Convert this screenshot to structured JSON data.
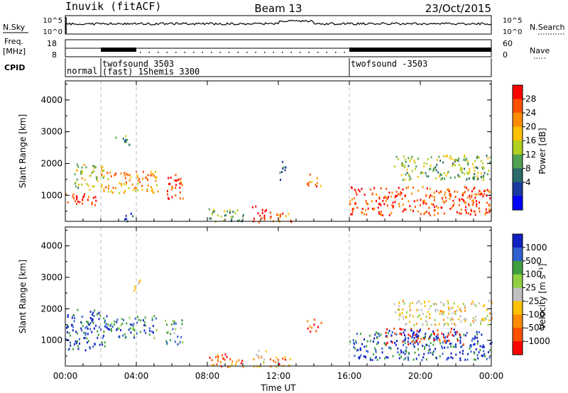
{
  "header": {
    "station": "Inuvik (fitACF)",
    "beam": "Beam 13",
    "date": "23/Oct/2015"
  },
  "strip_panels": {
    "nsky_label": "N.Sky",
    "nsky_ticks": [
      "10^5",
      "10^0"
    ],
    "nsearch_label": "N.Search",
    "nsearch_ticks": [
      "10^5",
      "10^0"
    ],
    "freq_label_line1": "Freq.",
    "freq_label_line2": "[MHz]",
    "freq_ticks": [
      "18",
      "8"
    ],
    "nave_label": "Nave",
    "nave_ticks": [
      "60",
      "0"
    ],
    "cpid_label": "CPID",
    "cpid_segments": [
      {
        "text": "normal",
        "start_hour": 0
      },
      {
        "text": "twofsound 3503",
        "start_hour": 2
      },
      {
        "text": "(fast) 1Shemis 3300",
        "start_hour": 2
      },
      {
        "text": "twofsound -3503",
        "start_hour": 16
      }
    ]
  },
  "chart_data": [
    {
      "type": "heatmap",
      "name": "Power",
      "ylabel": "Slant Range [km]",
      "xlabel": "Time UT",
      "xlim_hours": [
        0,
        24
      ],
      "ylim_km": [
        180,
        4600
      ],
      "yticks": [
        "1000",
        "2000",
        "3000",
        "4000"
      ],
      "xticks": [
        "00:00",
        "04:00",
        "08:00",
        "12:00",
        "16:00",
        "20:00",
        "00:00"
      ],
      "colorbar_label": "Power [dB]",
      "colorbar_ticks": [
        "28",
        "24",
        "20",
        "16",
        "12",
        "8",
        "4"
      ],
      "colorbar_colors": [
        "#ff0000",
        "#ff5000",
        "#ff8c00",
        "#ffc000",
        "#b0d020",
        "#50a050",
        "#2a6a6a",
        "#1a3aa0",
        "#0000ff"
      ],
      "blobs": [
        {
          "t0": 0.0,
          "t1": 1.8,
          "r0": 700,
          "r1": 1100,
          "level": 0.85
        },
        {
          "t0": 0.5,
          "t1": 2.2,
          "r0": 1200,
          "r1": 2000,
          "level": 0.5
        },
        {
          "t0": 2.0,
          "t1": 5.2,
          "r0": 1100,
          "r1": 1800,
          "level": 0.7
        },
        {
          "t0": 5.6,
          "t1": 6.6,
          "r0": 900,
          "r1": 1700,
          "level": 0.9
        },
        {
          "t0": 2.8,
          "t1": 3.6,
          "r0": 2500,
          "r1": 2900,
          "level": 0.35
        },
        {
          "t0": 3.2,
          "t1": 3.8,
          "r0": 200,
          "r1": 500,
          "level": 0.2
        },
        {
          "t0": 8.0,
          "t1": 10.0,
          "r0": 180,
          "r1": 600,
          "level": 0.4
        },
        {
          "t0": 10.5,
          "t1": 11.3,
          "r0": 180,
          "r1": 700,
          "level": 0.95
        },
        {
          "t0": 11.5,
          "t1": 12.8,
          "r0": 180,
          "r1": 500,
          "level": 0.8
        },
        {
          "t0": 13.6,
          "t1": 14.4,
          "r0": 1300,
          "r1": 1700,
          "level": 0.75
        },
        {
          "t0": 12.0,
          "t1": 12.4,
          "r0": 1500,
          "r1": 2100,
          "level": 0.3
        },
        {
          "t0": 16.0,
          "t1": 24.0,
          "r0": 400,
          "r1": 1300,
          "level": 0.85
        },
        {
          "t0": 18.5,
          "t1": 24.0,
          "r0": 1500,
          "r1": 2300,
          "level": 0.45
        }
      ]
    },
    {
      "type": "heatmap",
      "name": "Velocity",
      "ylabel": "Slant Range [km]",
      "xlabel": "Time UT",
      "xlim_hours": [
        0,
        24
      ],
      "ylim_km": [
        180,
        4600
      ],
      "yticks": [
        "1000",
        "2000",
        "3000",
        "4000"
      ],
      "xticks": [
        "00:00",
        "04:00",
        "08:00",
        "12:00",
        "16:00",
        "20:00",
        "00:00"
      ],
      "colorbar_label": "Velocity [m s⁻¹]",
      "colorbar_ticks": [
        "1000",
        "500",
        "100",
        "25",
        "-25",
        "-100",
        "-500",
        "-1000"
      ],
      "colorbar_colors": [
        "#1020c0",
        "#3060d0",
        "#40a040",
        "#90d040",
        "#c0c0c0",
        "#ffc000",
        "#ff8c00",
        "#ff5000",
        "#ff0000"
      ],
      "blobs": [
        {
          "t0": 0.0,
          "t1": 2.2,
          "r0": 700,
          "r1": 2000,
          "level": 0.85
        },
        {
          "t0": 2.0,
          "t1": 5.2,
          "r0": 1100,
          "r1": 1800,
          "level": 0.8
        },
        {
          "t0": 5.6,
          "t1": 6.6,
          "r0": 900,
          "r1": 1700,
          "level": 0.7
        },
        {
          "t0": 3.8,
          "t1": 4.2,
          "r0": 2600,
          "r1": 3000,
          "level": 0.45
        },
        {
          "t0": 8.0,
          "t1": 10.0,
          "r0": 180,
          "r1": 600,
          "level": 0.2
        },
        {
          "t0": 10.5,
          "t1": 11.3,
          "r0": 180,
          "r1": 700,
          "level": 0.4
        },
        {
          "t0": 11.5,
          "t1": 12.8,
          "r0": 180,
          "r1": 500,
          "level": 0.25
        },
        {
          "t0": 13.6,
          "t1": 14.4,
          "r0": 1300,
          "r1": 1700,
          "level": 0.15
        },
        {
          "t0": 16.0,
          "t1": 24.0,
          "r0": 400,
          "r1": 1300,
          "level": 0.85
        },
        {
          "t0": 18.0,
          "t1": 22.5,
          "r0": 900,
          "r1": 1400,
          "level": 0.05
        },
        {
          "t0": 18.5,
          "t1": 24.0,
          "r0": 1500,
          "r1": 2300,
          "level": 0.45
        }
      ]
    }
  ]
}
